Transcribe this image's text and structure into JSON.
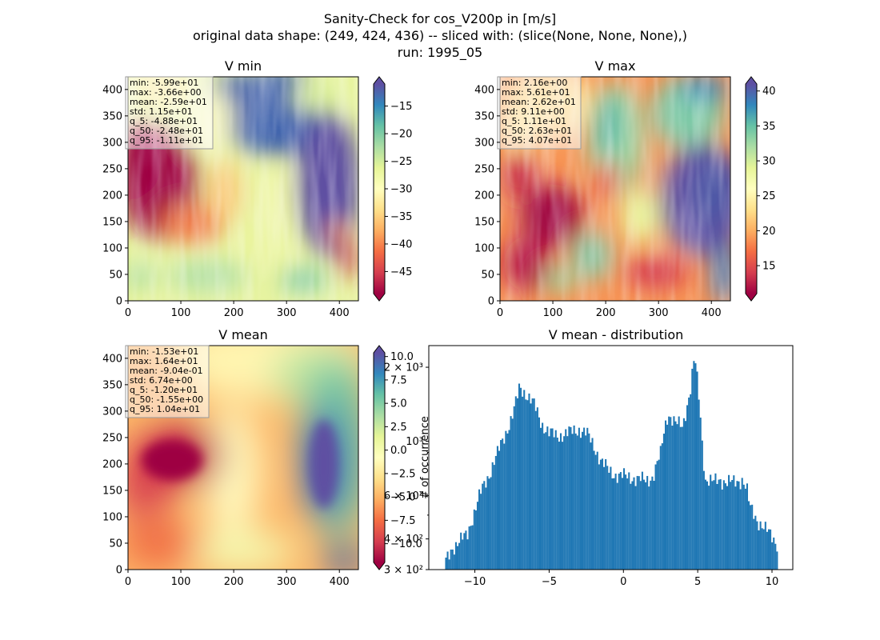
{
  "figure": {
    "title_lines": [
      "Sanity-Check for cos_V200p in [m/s]",
      "original data shape: (249, 424, 436) -- sliced with: (slice(None, None, None),)",
      "run: 1995_05"
    ]
  },
  "chart_data": [
    {
      "type": "heatmap",
      "title": "V min",
      "colormap": "Spectral",
      "xlim": [
        0,
        436
      ],
      "ylim": [
        0,
        424
      ],
      "x_ticks": [
        "0",
        "100",
        "200",
        "300",
        "400"
      ],
      "y_ticks": [
        "0",
        "50",
        "100",
        "150",
        "200",
        "250",
        "300",
        "350",
        "400"
      ],
      "colorbar": {
        "range": [
          -49,
          -11
        ],
        "extend": "both",
        "ticks": [
          "−15",
          "−20",
          "−25",
          "−30",
          "−35",
          "−40",
          "−45"
        ]
      },
      "stats": [
        "min: -5.99e+01",
        "max: -3.66e+00",
        "mean: -2.59e+01",
        "std: 1.15e+01",
        "q_5: -4.88e+01",
        "q_50: -2.48e+01",
        "q_95: -1.11e+01"
      ]
    },
    {
      "type": "heatmap",
      "title": "V max",
      "colormap": "Spectral",
      "xlim": [
        0,
        436
      ],
      "ylim": [
        0,
        424
      ],
      "x_ticks": [
        "0",
        "100",
        "200",
        "300",
        "400"
      ],
      "y_ticks": [
        "0",
        "50",
        "100",
        "150",
        "200",
        "250",
        "300",
        "350",
        "400"
      ],
      "colorbar": {
        "range": [
          11,
          41
        ],
        "extend": "both",
        "ticks": [
          "15",
          "20",
          "25",
          "30",
          "35",
          "40"
        ]
      },
      "stats": [
        "min: 2.16e+00",
        "max: 5.61e+01",
        "mean: 2.62e+01",
        "std: 9.11e+00",
        "q_5: 1.11e+01",
        "q_50: 2.63e+01",
        "q_95: 4.07e+01"
      ]
    },
    {
      "type": "heatmap",
      "title": "V mean",
      "colormap": "Spectral",
      "xlim": [
        0,
        436
      ],
      "ylim": [
        0,
        424
      ],
      "x_ticks": [
        "0",
        "100",
        "200",
        "300",
        "400"
      ],
      "y_ticks": [
        "0",
        "50",
        "100",
        "150",
        "200",
        "250",
        "300",
        "350",
        "400"
      ],
      "colorbar": {
        "range": [
          -12,
          10.4
        ],
        "extend": "both",
        "ticks": [
          "10.0",
          "7.5",
          "5.0",
          "2.5",
          "0.0",
          "−2.5",
          "−5.0",
          "−7.5",
          "−10.0"
        ]
      },
      "stats": [
        "min: -1.53e+01",
        "max: 1.64e+01",
        "mean: -9.04e-01",
        "std: 6.74e+00",
        "q_5: -1.20e+01",
        "q_50: -1.55e+00",
        "q_95: 1.04e+01"
      ]
    },
    {
      "type": "bar",
      "title": "V mean - distribution",
      "ylabel": "# of occurrence",
      "yscale": "log",
      "color": "#1f77b4",
      "xlim": [
        -13.1,
        11.4
      ],
      "ylim": [
        300,
        2450
      ],
      "x_ticks": [
        "−10",
        "−5",
        "0",
        "5",
        "10"
      ],
      "y_ticks_major": [
        "3 × 10²",
        "4 × 10²",
        "6 × 10²",
        "10³",
        "2 × 10³"
      ],
      "bin_range": [
        -12,
        10.4
      ],
      "control_points": [
        [
          -12.0,
          320
        ],
        [
          -11.5,
          370
        ],
        [
          -11.0,
          390
        ],
        [
          -10.5,
          420
        ],
        [
          -10.0,
          520
        ],
        [
          -9.5,
          640
        ],
        [
          -9.0,
          740
        ],
        [
          -8.5,
          880
        ],
        [
          -8.0,
          1050
        ],
        [
          -7.5,
          1250
        ],
        [
          -7.2,
          1450
        ],
        [
          -7.0,
          1650
        ],
        [
          -6.8,
          1620
        ],
        [
          -6.5,
          1550
        ],
        [
          -6.0,
          1400
        ],
        [
          -5.5,
          1180
        ],
        [
          -5.0,
          1080
        ],
        [
          -4.5,
          1050
        ],
        [
          -4.0,
          1070
        ],
        [
          -3.5,
          1090
        ],
        [
          -3.0,
          1120
        ],
        [
          -2.5,
          1080
        ],
        [
          -2.0,
          960
        ],
        [
          -1.5,
          830
        ],
        [
          -1.0,
          760
        ],
        [
          -0.5,
          730
        ],
        [
          0.0,
          720
        ],
        [
          0.5,
          715
        ],
        [
          1.0,
          700
        ],
        [
          1.5,
          690
        ],
        [
          2.0,
          720
        ],
        [
          2.5,
          880
        ],
        [
          2.8,
          1150
        ],
        [
          3.0,
          1300
        ],
        [
          3.5,
          1180
        ],
        [
          4.0,
          1150
        ],
        [
          4.5,
          1600
        ],
        [
          4.8,
          2200
        ],
        [
          5.0,
          1700
        ],
        [
          5.3,
          1000
        ],
        [
          5.5,
          700
        ],
        [
          6.0,
          680
        ],
        [
          6.5,
          700
        ],
        [
          7.0,
          680
        ],
        [
          7.5,
          680
        ],
        [
          8.0,
          700
        ],
        [
          8.3,
          640
        ],
        [
          8.5,
          540
        ],
        [
          9.0,
          480
        ],
        [
          9.5,
          440
        ],
        [
          10.0,
          410
        ],
        [
          10.4,
          380
        ]
      ]
    }
  ]
}
